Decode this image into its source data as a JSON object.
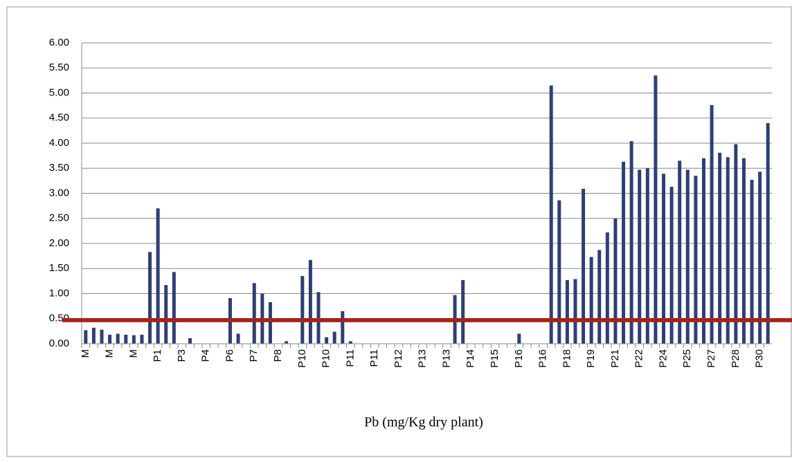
{
  "chart_data": {
    "type": "bar",
    "x_label": "Pb (mg/Kg dry plant)",
    "categories": [
      "M",
      null,
      null,
      "M",
      null,
      null,
      "M",
      null,
      null,
      "P1",
      null,
      null,
      "P3",
      null,
      null,
      "P4",
      null,
      null,
      "P6",
      null,
      null,
      "P7",
      null,
      null,
      "P8",
      null,
      null,
      "P10",
      null,
      null,
      "P10",
      null,
      null,
      "P11",
      null,
      null,
      "P11",
      null,
      null,
      "P12",
      null,
      null,
      "P13",
      null,
      null,
      "P13",
      null,
      null,
      "P14",
      null,
      null,
      "P15",
      null,
      null,
      "P16",
      null,
      null,
      "P16",
      null,
      null,
      "P18",
      null,
      null,
      "P19",
      null,
      null,
      "P21",
      null,
      null,
      "P22",
      null,
      null,
      "P24",
      null,
      null,
      "P25",
      null,
      null,
      "P27",
      null,
      null,
      "P28",
      null,
      null,
      "P30",
      null
    ],
    "values": [
      0.27,
      0.32,
      0.28,
      0.18,
      0.2,
      0.18,
      0.17,
      0.18,
      1.83,
      2.7,
      1.17,
      1.43,
      0,
      0.11,
      0,
      0,
      0,
      0,
      0.91,
      0.2,
      0,
      1.21,
      1.0,
      0.83,
      0,
      0.05,
      0,
      1.35,
      1.67,
      1.03,
      0.13,
      0.24,
      0.65,
      0.05,
      0,
      0,
      0,
      0,
      0,
      0,
      0,
      0,
      0,
      0,
      0,
      0,
      0.97,
      1.27,
      0,
      0,
      0,
      0,
      0,
      0,
      0.2,
      0,
      0,
      0,
      5.15,
      2.86,
      1.27,
      1.29,
      3.09,
      1.73,
      1.87,
      2.22,
      2.5,
      3.63,
      4.04,
      3.47,
      3.5,
      5.35,
      3.39,
      3.13,
      3.65,
      3.47,
      3.35,
      3.7,
      4.76,
      3.81,
      3.72,
      3.98,
      3.7,
      3.27,
      3.43,
      4.4
    ],
    "color": "#2e3f74",
    "ylim": [
      0,
      6
    ],
    "yticks": [
      {
        "value": 0,
        "label": "0.00"
      },
      {
        "value": 0.5,
        "label": "0.50"
      },
      {
        "value": 1,
        "label": "1.00"
      },
      {
        "value": 1.5,
        "label": "1.50"
      },
      {
        "value": 2,
        "label": "2.00"
      },
      {
        "value": 2.5,
        "label": "2.50"
      },
      {
        "value": 3,
        "label": "3.00"
      },
      {
        "value": 3.5,
        "label": "3.50"
      },
      {
        "value": 4,
        "label": "4.00"
      },
      {
        "value": 4.5,
        "label": "4.50"
      },
      {
        "value": 5,
        "label": "5.00"
      },
      {
        "value": 5.5,
        "label": "5.50"
      },
      {
        "value": 6,
        "label": "6.00"
      }
    ],
    "grid": true,
    "reference_line": {
      "value": 0.47,
      "color": "#a3241f"
    }
  }
}
